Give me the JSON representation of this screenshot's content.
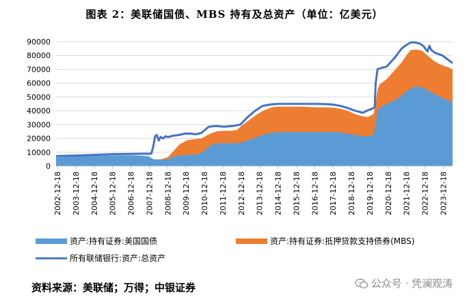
{
  "title": "图表 2：美联储国债、MBS 持有及总资产（单位：亿美元）",
  "source": "资料来源：美联储；万得；中银证券",
  "watermark": "公众号 · 凭澜观涛",
  "colors": {
    "treasury": "#5b9bd5",
    "mbs": "#ed7d31",
    "total": "#4472c4",
    "grid": "#d9d9d9"
  },
  "chart_data": {
    "type": "area",
    "title": "图表 2：美联储国债、MBS 持有及总资产（单位：亿美元）",
    "ylim": [
      0,
      90000
    ],
    "yticks": [
      0,
      10000,
      20000,
      30000,
      40000,
      50000,
      60000,
      70000,
      80000,
      90000
    ],
    "xlim": [
      2002.96,
      2024.35
    ],
    "xtick_labels": [
      "2002-12-18",
      "2003-12-18",
      "2004-12-18",
      "2005-12-18",
      "2006-12-18",
      "2007-12-18",
      "2008-12-18",
      "2009-12-18",
      "2010-12-18",
      "2011-12-18",
      "2012-12-18",
      "2013-12-18",
      "2014-12-18",
      "2015-12-18",
      "2016-12-18",
      "2017-12-18",
      "2018-12-18",
      "2019-12-18",
      "2020-12-18",
      "2021-12-18",
      "2022-12-18",
      "2023-12-18"
    ],
    "legend": [
      {
        "key": "treasury",
        "label": "资产:持有证券:美国国债"
      },
      {
        "key": "mbs",
        "label": "资产:持有证券:抵押贷款支持债券(MBS)"
      },
      {
        "key": "total",
        "label": "所有联储银行:资产:总资产"
      }
    ],
    "series": [
      {
        "name": "资产:持有证券:美国国债",
        "type": "area",
        "x": [
          2002.96,
          2004,
          2005,
          2006,
          2007,
          2007.5,
          2007.95,
          2008.2,
          2008.4,
          2008.7,
          2009,
          2009.3,
          2009.6,
          2009.9,
          2010.3,
          2010.6,
          2010.9,
          2011.3,
          2011.6,
          2012,
          2012.5,
          2012.9,
          2013.3,
          2013.7,
          2014.1,
          2014.5,
          2014.9,
          2015.5,
          2016,
          2016.5,
          2017,
          2017.5,
          2017.9,
          2018.3,
          2018.7,
          2019.1,
          2019.5,
          2019.9,
          2020.1,
          2020.2,
          2020.3,
          2020.4,
          2020.8,
          2021.3,
          2021.8,
          2022.1,
          2022.4,
          2022.7,
          2023,
          2023.3,
          2023.7,
          2024.1,
          2024.35
        ],
        "values": [
          6300,
          7000,
          7400,
          7700,
          7800,
          7500,
          7100,
          5000,
          4800,
          4700,
          4800,
          6800,
          7700,
          7800,
          8300,
          8400,
          10500,
          15000,
          16500,
          16500,
          16500,
          16700,
          18500,
          20500,
          22500,
          24000,
          24500,
          24600,
          24600,
          24600,
          24600,
          24600,
          24600,
          24300,
          23500,
          22500,
          21500,
          21700,
          23000,
          31000,
          40000,
          42000,
          45000,
          48000,
          53000,
          56500,
          57500,
          57000,
          55000,
          52500,
          50000,
          47500,
          46000
        ]
      },
      {
        "name": "资产:持有证券:抵押贷款支持债券(MBS)",
        "type": "stacked-area-top",
        "x": [
          2002.96,
          2008.3,
          2008.6,
          2009,
          2009.3,
          2009.6,
          2010,
          2010.4,
          2010.8,
          2011.2,
          2011.6,
          2012,
          2012.4,
          2012.7,
          2013,
          2013.4,
          2013.8,
          2014.2,
          2014.6,
          2014.9,
          2015.5,
          2016,
          2016.5,
          2017,
          2017.5,
          2017.9,
          2018.3,
          2018.7,
          2019.1,
          2019.5,
          2019.8,
          2020.1,
          2020.2,
          2020.3,
          2020.4,
          2020.8,
          2021.2,
          2021.6,
          2021.9,
          2022.1,
          2022.4,
          2022.7,
          2023,
          2023.3,
          2023.6,
          2023.9,
          2024.2,
          2024.35
        ],
        "values": [
          6300,
          4700,
          4800,
          6500,
          11000,
          15500,
          18500,
          19500,
          20000,
          23000,
          25000,
          25500,
          25500,
          26000,
          29500,
          33500,
          37500,
          40500,
          42500,
          43000,
          43000,
          43000,
          42800,
          42500,
          42500,
          42300,
          41500,
          40000,
          37500,
          36000,
          35500,
          38000,
          46000,
          55000,
          59000,
          63000,
          69000,
          75000,
          81000,
          84000,
          84300,
          83500,
          80000,
          76500,
          74000,
          72500,
          71000,
          70000
        ]
      },
      {
        "name": "所有联储银行:资产:总资产",
        "type": "line",
        "x": [
          2002.96,
          2004,
          2005,
          2006,
          2007,
          2007.6,
          2008.0,
          2008.1,
          2008.2,
          2008.3,
          2008.4,
          2008.5,
          2008.6,
          2008.75,
          2008.85,
          2009,
          2009.3,
          2009.6,
          2009.9,
          2010.2,
          2010.5,
          2010.8,
          2011.2,
          2011.6,
          2012,
          2012.5,
          2012.9,
          2013.3,
          2013.7,
          2014.1,
          2014.5,
          2014.9,
          2015.5,
          2016,
          2016.5,
          2017,
          2017.5,
          2017.9,
          2018.3,
          2018.7,
          2019.1,
          2019.5,
          2019.8,
          2020.0,
          2020.1,
          2020.15,
          2020.2,
          2020.3,
          2020.5,
          2020.8,
          2021.2,
          2021.6,
          2021.9,
          2022.1,
          2022.3,
          2022.6,
          2022.8,
          2022.9,
          2023.0,
          2023.1,
          2023.2,
          2023.4,
          2023.8,
          2024.1,
          2024.35
        ],
        "values": [
          7200,
          7600,
          8100,
          8600,
          8800,
          8900,
          8900,
          9000,
          14000,
          21500,
          22500,
          18500,
          21000,
          20000,
          21500,
          21000,
          22000,
          22500,
          23500,
          23500,
          23000,
          24000,
          28500,
          29000,
          28500,
          29000,
          30000,
          35500,
          40000,
          43500,
          44500,
          45000,
          45000,
          45000,
          45000,
          45000,
          44800,
          44500,
          43500,
          42000,
          40000,
          38500,
          40500,
          41500,
          42000,
          43000,
          60000,
          70000,
          71000,
          72000,
          78000,
          85000,
          88000,
          89500,
          89500,
          88500,
          86500,
          84500,
          83000,
          87000,
          84000,
          82000,
          80000,
          77000,
          74500
        ]
      }
    ]
  }
}
